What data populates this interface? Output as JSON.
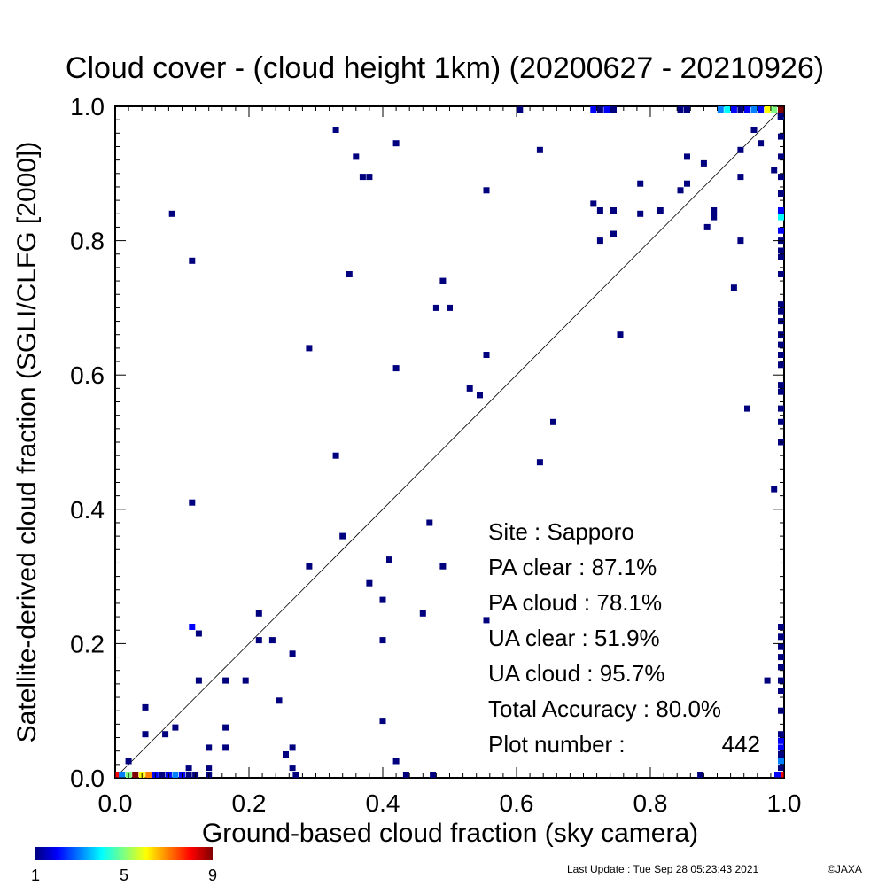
{
  "chart_data": {
    "type": "scatter",
    "title": "Cloud cover - (cloud height 1km)  (20200627 - 20210926)",
    "xlabel": "Ground-based cloud fraction (sky camera)",
    "ylabel": "Satellite-derived cloud fraction (SGLI/CLFG [2000])",
    "xlim": [
      0.0,
      1.0
    ],
    "ylim": [
      0.0,
      1.0
    ],
    "x_ticks": [
      "0.0",
      "0.2",
      "0.4",
      "0.6",
      "0.8",
      "1.0"
    ],
    "y_ticks": [
      "0.0",
      "0.2",
      "0.4",
      "0.6",
      "0.8",
      "1.0"
    ],
    "grid": false,
    "reference_line": "y = x",
    "stats": [
      {
        "label": "Site : Sapporo",
        "value": ""
      },
      {
        "label": "PA clear :",
        "value": "87.1%"
      },
      {
        "label": "PA cloud :",
        "value": "78.1%"
      },
      {
        "label": "UA clear :",
        "value": "51.9%"
      },
      {
        "label": "UA cloud :",
        "value": "95.7%"
      },
      {
        "label": "Total Accuracy :",
        "value": "80.0%"
      },
      {
        "label": "Plot number :",
        "value": "442"
      }
    ],
    "colorbar": {
      "labels": [
        "1",
        "5",
        "9"
      ],
      "min": 1,
      "max": 9,
      "colors": [
        "#00007f",
        "#0000ff",
        "#007fff",
        "#00ffff",
        "#7fff7f",
        "#ffff00",
        "#ff7f00",
        "#ff0000",
        "#7f0000"
      ]
    },
    "points": [
      {
        "x": 0.02,
        "y": 0.025,
        "c": 1
      },
      {
        "x": 0.045,
        "y": 0.065,
        "c": 1
      },
      {
        "x": 0.045,
        "y": 0.105,
        "c": 1
      },
      {
        "x": 0.075,
        "y": 0.065,
        "c": 1
      },
      {
        "x": 0.09,
        "y": 0.075,
        "c": 1
      },
      {
        "x": 0.085,
        "y": 0.84,
        "c": 1
      },
      {
        "x": 0.115,
        "y": 0.77,
        "c": 1
      },
      {
        "x": 0.115,
        "y": 0.41,
        "c": 1
      },
      {
        "x": 0.115,
        "y": 0.225,
        "c": 2
      },
      {
        "x": 0.125,
        "y": 0.215,
        "c": 1
      },
      {
        "x": 0.125,
        "y": 0.145,
        "c": 1
      },
      {
        "x": 0.14,
        "y": 0.045,
        "c": 1
      },
      {
        "x": 0.165,
        "y": 0.145,
        "c": 1
      },
      {
        "x": 0.165,
        "y": 0.075,
        "c": 1
      },
      {
        "x": 0.165,
        "y": 0.045,
        "c": 1
      },
      {
        "x": 0.195,
        "y": 0.145,
        "c": 1
      },
      {
        "x": 0.215,
        "y": 0.245,
        "c": 1
      },
      {
        "x": 0.215,
        "y": 0.205,
        "c": 1
      },
      {
        "x": 0.235,
        "y": 0.205,
        "c": 1
      },
      {
        "x": 0.245,
        "y": 0.115,
        "c": 1
      },
      {
        "x": 0.255,
        "y": 0.035,
        "c": 1
      },
      {
        "x": 0.265,
        "y": 0.185,
        "c": 1
      },
      {
        "x": 0.265,
        "y": 0.045,
        "c": 1
      },
      {
        "x": 0.265,
        "y": 0.015,
        "c": 1
      },
      {
        "x": 0.29,
        "y": 0.64,
        "c": 1
      },
      {
        "x": 0.29,
        "y": 0.315,
        "c": 1
      },
      {
        "x": 0.33,
        "y": 0.965,
        "c": 1
      },
      {
        "x": 0.33,
        "y": 0.48,
        "c": 1
      },
      {
        "x": 0.34,
        "y": 0.36,
        "c": 1
      },
      {
        "x": 0.35,
        "y": 0.75,
        "c": 1
      },
      {
        "x": 0.36,
        "y": 0.925,
        "c": 1
      },
      {
        "x": 0.37,
        "y": 0.895,
        "c": 1
      },
      {
        "x": 0.38,
        "y": 0.895,
        "c": 1
      },
      {
        "x": 0.38,
        "y": 0.29,
        "c": 1
      },
      {
        "x": 0.4,
        "y": 0.265,
        "c": 1
      },
      {
        "x": 0.4,
        "y": 0.205,
        "c": 1
      },
      {
        "x": 0.4,
        "y": 0.085,
        "c": 1
      },
      {
        "x": 0.41,
        "y": 0.325,
        "c": 1
      },
      {
        "x": 0.42,
        "y": 0.945,
        "c": 1
      },
      {
        "x": 0.42,
        "y": 0.61,
        "c": 1
      },
      {
        "x": 0.42,
        "y": 0.025,
        "c": 1
      },
      {
        "x": 0.46,
        "y": 0.245,
        "c": 1
      },
      {
        "x": 0.47,
        "y": 0.38,
        "c": 1
      },
      {
        "x": 0.48,
        "y": 0.7,
        "c": 1
      },
      {
        "x": 0.49,
        "y": 0.74,
        "c": 1
      },
      {
        "x": 0.49,
        "y": 0.315,
        "c": 1
      },
      {
        "x": 0.5,
        "y": 0.7,
        "c": 1
      },
      {
        "x": 0.53,
        "y": 0.58,
        "c": 1
      },
      {
        "x": 0.545,
        "y": 0.57,
        "c": 1
      },
      {
        "x": 0.555,
        "y": 0.875,
        "c": 1
      },
      {
        "x": 0.555,
        "y": 0.63,
        "c": 1
      },
      {
        "x": 0.555,
        "y": 0.235,
        "c": 1
      },
      {
        "x": 0.605,
        "y": 0.995,
        "c": 1
      },
      {
        "x": 0.635,
        "y": 0.935,
        "c": 1
      },
      {
        "x": 0.635,
        "y": 0.47,
        "c": 1
      },
      {
        "x": 0.655,
        "y": 0.53,
        "c": 1
      },
      {
        "x": 0.715,
        "y": 0.855,
        "c": 1
      },
      {
        "x": 0.725,
        "y": 0.845,
        "c": 1
      },
      {
        "x": 0.725,
        "y": 0.8,
        "c": 1
      },
      {
        "x": 0.745,
        "y": 0.845,
        "c": 1
      },
      {
        "x": 0.745,
        "y": 0.81,
        "c": 1
      },
      {
        "x": 0.755,
        "y": 0.66,
        "c": 1
      },
      {
        "x": 0.785,
        "y": 0.885,
        "c": 1
      },
      {
        "x": 0.785,
        "y": 0.84,
        "c": 1
      },
      {
        "x": 0.815,
        "y": 0.845,
        "c": 1
      },
      {
        "x": 0.845,
        "y": 0.875,
        "c": 1
      },
      {
        "x": 0.855,
        "y": 0.925,
        "c": 1
      },
      {
        "x": 0.855,
        "y": 0.885,
        "c": 1
      },
      {
        "x": 0.875,
        "y": 0.0,
        "c": 1
      },
      {
        "x": 0.88,
        "y": 0.915,
        "c": 1
      },
      {
        "x": 0.885,
        "y": 0.82,
        "c": 1
      },
      {
        "x": 0.895,
        "y": 0.845,
        "c": 1
      },
      {
        "x": 0.895,
        "y": 0.835,
        "c": 1
      },
      {
        "x": 0.925,
        "y": 0.73,
        "c": 1
      },
      {
        "x": 0.935,
        "y": 0.935,
        "c": 1
      },
      {
        "x": 0.935,
        "y": 0.895,
        "c": 1
      },
      {
        "x": 0.935,
        "y": 0.8,
        "c": 1
      },
      {
        "x": 0.945,
        "y": 0.55,
        "c": 1
      },
      {
        "x": 0.955,
        "y": 0.965,
        "c": 1
      },
      {
        "x": 0.965,
        "y": 0.945,
        "c": 1
      },
      {
        "x": 0.975,
        "y": 0.145,
        "c": 1
      },
      {
        "x": 0.985,
        "y": 0.905,
        "c": 1
      },
      {
        "x": 0.985,
        "y": 0.43,
        "c": 1
      },
      {
        "x": 0.0,
        "y": 0.0,
        "c": 8
      },
      {
        "x": 0.01,
        "y": 0.0,
        "c": 3
      },
      {
        "x": 0.02,
        "y": 0.0,
        "c": 5
      },
      {
        "x": 0.03,
        "y": 0.0,
        "c": 9
      },
      {
        "x": 0.04,
        "y": 0.0,
        "c": 6
      },
      {
        "x": 0.05,
        "y": 0.0,
        "c": 7
      },
      {
        "x": 0.06,
        "y": 0.0,
        "c": 2
      },
      {
        "x": 0.07,
        "y": 0.0,
        "c": 1
      },
      {
        "x": 0.08,
        "y": 0.0,
        "c": 2
      },
      {
        "x": 0.09,
        "y": 0.0,
        "c": 3
      },
      {
        "x": 0.1,
        "y": 0.0,
        "c": 2
      },
      {
        "x": 0.11,
        "y": 0.0,
        "c": 1
      },
      {
        "x": 0.11,
        "y": 0.015,
        "c": 1
      },
      {
        "x": 0.12,
        "y": 0.0,
        "c": 1
      },
      {
        "x": 0.14,
        "y": 0.0,
        "c": 1
      },
      {
        "x": 0.14,
        "y": 0.015,
        "c": 1
      },
      {
        "x": 0.27,
        "y": 0.0,
        "c": 1
      },
      {
        "x": 0.435,
        "y": 0.0,
        "c": 1
      },
      {
        "x": 0.475,
        "y": 0.0,
        "c": 1
      },
      {
        "x": 0.715,
        "y": 1.0,
        "c": 2
      },
      {
        "x": 0.725,
        "y": 1.0,
        "c": 1
      },
      {
        "x": 0.735,
        "y": 1.0,
        "c": 2
      },
      {
        "x": 0.745,
        "y": 1.0,
        "c": 1
      },
      {
        "x": 0.845,
        "y": 1.0,
        "c": 1
      },
      {
        "x": 0.855,
        "y": 1.0,
        "c": 1
      },
      {
        "x": 0.905,
        "y": 1.0,
        "c": 3
      },
      {
        "x": 0.915,
        "y": 1.0,
        "c": 4
      },
      {
        "x": 0.925,
        "y": 1.0,
        "c": 2
      },
      {
        "x": 0.935,
        "y": 1.0,
        "c": 1
      },
      {
        "x": 0.945,
        "y": 1.0,
        "c": 2
      },
      {
        "x": 0.955,
        "y": 1.0,
        "c": 3
      },
      {
        "x": 0.965,
        "y": 1.0,
        "c": 2
      },
      {
        "x": 0.975,
        "y": 1.0,
        "c": 6
      },
      {
        "x": 0.985,
        "y": 1.0,
        "c": 5
      },
      {
        "x": 1.0,
        "y": 1.0,
        "c": 9
      },
      {
        "x": 1.0,
        "y": 0.985,
        "c": 3
      },
      {
        "x": 0.995,
        "y": 0.985,
        "c": 1
      },
      {
        "x": 1.0,
        "y": 0.955,
        "c": 1
      },
      {
        "x": 1.0,
        "y": 0.925,
        "c": 1
      },
      {
        "x": 1.0,
        "y": 0.895,
        "c": 1
      },
      {
        "x": 1.0,
        "y": 0.87,
        "c": 1
      },
      {
        "x": 1.0,
        "y": 0.845,
        "c": 2
      },
      {
        "x": 1.0,
        "y": 0.835,
        "c": 4
      },
      {
        "x": 1.0,
        "y": 0.815,
        "c": 2
      },
      {
        "x": 1.0,
        "y": 0.8,
        "c": 1
      },
      {
        "x": 1.0,
        "y": 0.785,
        "c": 1
      },
      {
        "x": 1.0,
        "y": 0.775,
        "c": 1
      },
      {
        "x": 1.0,
        "y": 0.75,
        "c": 1
      },
      {
        "x": 1.0,
        "y": 0.705,
        "c": 1
      },
      {
        "x": 1.0,
        "y": 0.695,
        "c": 1
      },
      {
        "x": 1.0,
        "y": 0.68,
        "c": 1
      },
      {
        "x": 1.0,
        "y": 0.66,
        "c": 1
      },
      {
        "x": 1.0,
        "y": 0.645,
        "c": 1
      },
      {
        "x": 1.0,
        "y": 0.63,
        "c": 1
      },
      {
        "x": 1.0,
        "y": 0.615,
        "c": 1
      },
      {
        "x": 1.0,
        "y": 0.585,
        "c": 1
      },
      {
        "x": 1.0,
        "y": 0.575,
        "c": 1
      },
      {
        "x": 1.0,
        "y": 0.55,
        "c": 1
      },
      {
        "x": 1.0,
        "y": 0.53,
        "c": 1
      },
      {
        "x": 1.0,
        "y": 0.5,
        "c": 1
      },
      {
        "x": 1.0,
        "y": 0.225,
        "c": 1
      },
      {
        "x": 1.0,
        "y": 0.21,
        "c": 1
      },
      {
        "x": 1.0,
        "y": 0.195,
        "c": 1
      },
      {
        "x": 1.0,
        "y": 0.18,
        "c": 1
      },
      {
        "x": 1.0,
        "y": 0.165,
        "c": 1
      },
      {
        "x": 1.0,
        "y": 0.145,
        "c": 1
      },
      {
        "x": 1.0,
        "y": 0.13,
        "c": 1
      },
      {
        "x": 1.0,
        "y": 0.1,
        "c": 1
      },
      {
        "x": 1.0,
        "y": 0.065,
        "c": 1
      },
      {
        "x": 1.0,
        "y": 0.055,
        "c": 2
      },
      {
        "x": 1.0,
        "y": 0.045,
        "c": 2
      },
      {
        "x": 1.0,
        "y": 0.035,
        "c": 1
      },
      {
        "x": 1.0,
        "y": 0.025,
        "c": 3
      },
      {
        "x": 1.0,
        "y": 0.015,
        "c": 1
      },
      {
        "x": 1.0,
        "y": 0.0,
        "c": 8
      },
      {
        "x": 0.99,
        "y": 0.0,
        "c": 2
      }
    ]
  },
  "footer": {
    "last_update": "Last Update : Tue Sep 28 05:23:43 2021",
    "copyright": "©JAXA"
  }
}
